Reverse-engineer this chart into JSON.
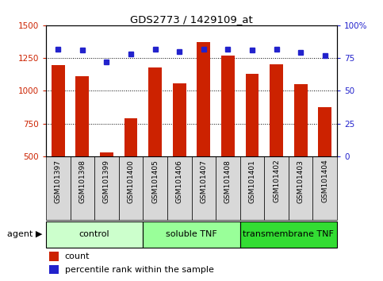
{
  "title": "GDS2773 / 1429109_at",
  "samples": [
    "GSM101397",
    "GSM101398",
    "GSM101399",
    "GSM101400",
    "GSM101405",
    "GSM101406",
    "GSM101407",
    "GSM101408",
    "GSM101401",
    "GSM101402",
    "GSM101403",
    "GSM101404"
  ],
  "count_values": [
    1195,
    1110,
    530,
    790,
    1175,
    1055,
    1370,
    1270,
    1130,
    1200,
    1050,
    875
  ],
  "percentile_values": [
    82,
    81,
    72,
    78,
    82,
    80,
    82,
    82,
    81,
    82,
    79,
    77
  ],
  "ylim_left": [
    500,
    1500
  ],
  "ylim_right": [
    0,
    100
  ],
  "yticks_left": [
    500,
    750,
    1000,
    1250,
    1500
  ],
  "yticks_right": [
    0,
    25,
    50,
    75,
    100
  ],
  "bar_color": "#cc2200",
  "dot_color": "#2222cc",
  "background_color": "#ffffff",
  "groups": [
    {
      "label": "control",
      "start": 0,
      "end": 4,
      "color": "#ccffcc"
    },
    {
      "label": "soluble TNF",
      "start": 4,
      "end": 8,
      "color": "#99ff99"
    },
    {
      "label": "transmembrane TNF",
      "start": 8,
      "end": 12,
      "color": "#33dd33"
    }
  ],
  "legend_count": "count",
  "legend_percentile": "percentile rank within the sample",
  "tick_label_color_left": "#cc2200",
  "tick_label_color_right": "#2222cc",
  "sample_bg_color": "#d8d8d8",
  "agent_label": "agent"
}
